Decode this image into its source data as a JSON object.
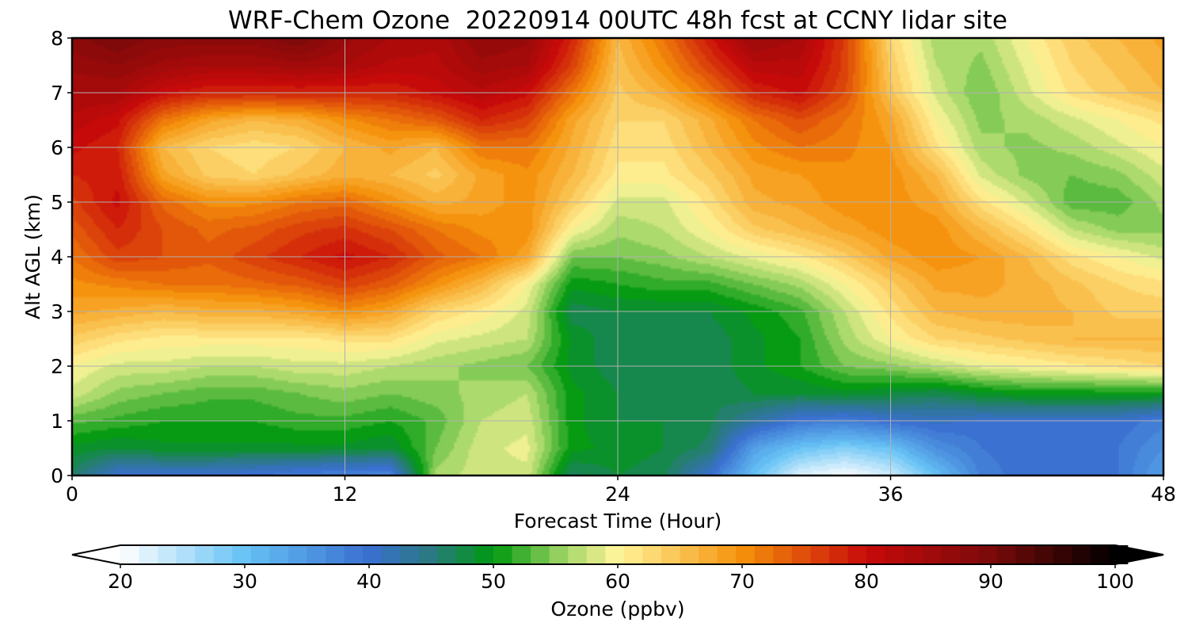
{
  "chart_data": {
    "type": "heatmap",
    "subtype": "filled-contour time-height cross section",
    "title": "WRF-Chem Ozone  20220914 00UTC 48h fcst at CCNY lidar site",
    "xlabel": "Forecast Time (Hour)",
    "ylabel": "Alt AGL (km)",
    "xlim": [
      0,
      48
    ],
    "ylim": [
      0,
      8
    ],
    "xticks": [
      0,
      12,
      24,
      36,
      48
    ],
    "yticks": [
      0,
      1,
      2,
      3,
      4,
      5,
      6,
      7,
      8
    ],
    "grid": true,
    "colorbar": {
      "label": "Ozone  (ppbv)",
      "orientation": "horizontal",
      "placement": "bottom",
      "range": [
        20,
        100
      ],
      "ticks": [
        20,
        30,
        40,
        50,
        60,
        70,
        80,
        90,
        100
      ],
      "extend": "both",
      "colors": {
        "20": "#ffffff",
        "30": "#66c2f5",
        "40": "#3a6fd0",
        "45": "#2a7a80",
        "50": "#00980f",
        "56": "#a8d86a",
        "60": "#fff59a",
        "70": "#f5900a",
        "80": "#c80a0a",
        "90": "#7a0a0a",
        "100": "#000000"
      }
    },
    "x": [
      0,
      2,
      4,
      6,
      8,
      10,
      12,
      14,
      16,
      18,
      20,
      22,
      24,
      26,
      28,
      30,
      32,
      34,
      36,
      38,
      40,
      42,
      44,
      46,
      48
    ],
    "y": [
      0,
      0.5,
      1,
      1.5,
      2,
      2.5,
      3,
      3.5,
      4,
      4.5,
      5,
      5.5,
      6,
      6.5,
      7,
      7.5,
      8
    ],
    "z": [
      [
        46,
        40,
        40,
        40,
        39,
        38,
        37,
        37,
        56,
        58,
        58,
        46,
        48,
        47,
        40,
        30,
        22,
        20,
        23,
        30,
        38,
        40,
        40,
        39,
        34
      ],
      [
        49,
        48,
        49,
        49,
        49,
        49,
        49,
        48,
        54,
        58,
        59,
        50,
        49,
        48,
        46,
        34,
        30,
        28,
        30,
        36,
        39,
        40,
        40,
        39,
        36
      ],
      [
        53,
        52,
        51,
        51,
        51,
        52,
        52,
        51,
        53,
        57,
        58,
        50,
        48,
        48,
        47,
        43,
        39,
        38,
        40,
        41,
        40,
        40,
        40,
        40,
        38
      ],
      [
        58,
        55,
        54,
        53,
        53,
        54,
        55,
        54,
        55,
        56,
        57,
        50,
        48,
        47,
        47,
        48,
        48,
        49,
        48,
        47,
        49,
        50,
        50,
        50,
        50
      ],
      [
        60,
        58,
        58,
        57,
        57,
        58,
        58,
        57,
        56,
        55,
        54,
        49,
        47,
        47,
        47,
        49,
        51,
        54,
        55,
        57,
        59,
        60,
        61,
        62,
        63
      ],
      [
        64,
        62,
        61,
        61,
        61,
        61,
        62,
        62,
        59,
        58,
        57,
        49,
        47,
        47,
        47,
        49,
        51,
        56,
        60,
        63,
        64,
        65,
        66,
        66,
        66
      ],
      [
        68,
        67,
        66,
        67,
        67,
        68,
        70,
        68,
        63,
        61,
        58,
        47,
        48,
        48,
        48,
        50,
        52,
        57,
        62,
        66,
        67,
        67,
        66,
        64,
        64
      ],
      [
        70,
        71,
        72,
        72,
        73,
        74,
        76,
        74,
        70,
        66,
        60,
        50,
        51,
        52,
        52,
        54,
        56,
        60,
        64,
        68,
        68,
        67,
        65,
        63,
        62
      ],
      [
        72,
        76,
        75,
        74,
        76,
        78,
        80,
        78,
        74,
        72,
        68,
        54,
        54,
        55,
        57,
        59,
        61,
        64,
        68,
        70,
        69,
        66,
        62,
        60,
        58
      ],
      [
        74,
        78,
        75,
        73,
        74,
        76,
        77,
        75,
        72,
        70,
        70,
        60,
        56,
        57,
        60,
        64,
        66,
        68,
        70,
        70,
        66,
        62,
        57,
        55,
        55
      ],
      [
        76,
        80,
        73,
        70,
        70,
        72,
        73,
        70,
        67,
        68,
        70,
        64,
        58,
        58,
        62,
        67,
        68,
        70,
        70,
        68,
        62,
        58,
        53,
        53,
        56
      ],
      [
        78,
        79,
        68,
        64,
        63,
        65,
        67,
        66,
        64,
        68,
        70,
        66,
        61,
        61,
        64,
        68,
        69,
        70,
        70,
        66,
        58,
        55,
        54,
        55,
        58
      ],
      [
        80,
        78,
        66,
        63,
        62,
        63,
        66,
        68,
        66,
        72,
        72,
        67,
        62,
        62,
        66,
        70,
        72,
        71,
        69,
        62,
        56,
        55,
        56,
        58,
        60
      ],
      [
        82,
        80,
        72,
        68,
        66,
        67,
        70,
        72,
        74,
        78,
        76,
        68,
        63,
        63,
        67,
        72,
        75,
        72,
        68,
        60,
        55,
        56,
        58,
        60,
        62
      ],
      [
        84,
        84,
        80,
        78,
        78,
        78,
        78,
        78,
        80,
        82,
        80,
        72,
        64,
        67,
        72,
        78,
        80,
        75,
        65,
        58,
        54,
        58,
        62,
        64,
        66
      ],
      [
        86,
        87,
        85,
        84,
        84,
        85,
        84,
        82,
        82,
        85,
        84,
        76,
        65,
        70,
        76,
        82,
        82,
        76,
        64,
        57,
        55,
        59,
        63,
        65,
        67
      ],
      [
        88,
        90,
        88,
        88,
        88,
        90,
        86,
        84,
        83,
        87,
        86,
        78,
        66,
        72,
        79,
        86,
        84,
        76,
        63,
        56,
        56,
        60,
        64,
        66,
        68
      ]
    ]
  }
}
